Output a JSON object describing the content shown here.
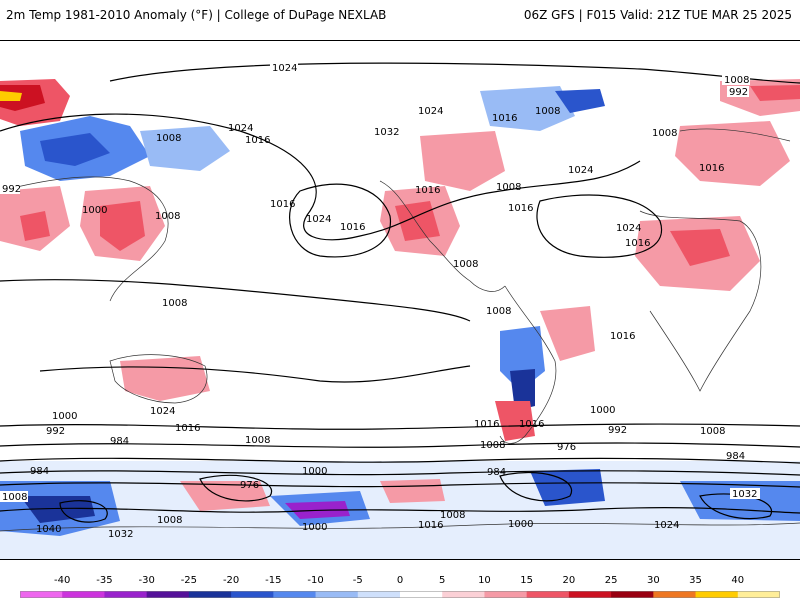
{
  "header": {
    "left_title": "2m Temp 1981-2010 Anomaly (°F) | College of DuPage NEXLAB",
    "right_title": "06Z GFS | F015 Valid: 21Z TUE MAR 25 2025"
  },
  "isobar_labels": [
    {
      "text": "1024"
    },
    {
      "text": "1008"
    },
    {
      "text": "992"
    },
    {
      "text": "1024"
    },
    {
      "text": "1016"
    },
    {
      "text": "1008"
    },
    {
      "text": "1032"
    },
    {
      "text": "1016"
    },
    {
      "text": "1008"
    },
    {
      "text": "1024"
    },
    {
      "text": "1016"
    },
    {
      "text": "1008"
    },
    {
      "text": "1016"
    },
    {
      "text": "1024"
    },
    {
      "text": "1016"
    },
    {
      "text": "1024"
    },
    {
      "text": "1016"
    },
    {
      "text": "1008"
    },
    {
      "text": "1008"
    },
    {
      "text": "1016"
    },
    {
      "text": "1008"
    },
    {
      "text": "1016"
    },
    {
      "text": "1024"
    },
    {
      "text": "1000"
    },
    {
      "text": "992"
    },
    {
      "text": "984"
    },
    {
      "text": "1000"
    },
    {
      "text": "992"
    },
    {
      "text": "976"
    },
    {
      "text": "984"
    },
    {
      "text": "1008"
    },
    {
      "text": "1040"
    },
    {
      "text": "1032"
    },
    {
      "text": "1024"
    },
    {
      "text": "1000"
    },
    {
      "text": "1016"
    },
    {
      "text": "1008"
    },
    {
      "text": "1000"
    },
    {
      "text": "1008"
    },
    {
      "text": "1032"
    },
    {
      "text": "1024"
    },
    {
      "text": "1016"
    },
    {
      "text": "1008"
    },
    {
      "text": "1016"
    },
    {
      "text": "1008"
    },
    {
      "text": "1000"
    },
    {
      "text": "1016"
    },
    {
      "text": "1008"
    },
    {
      "text": "984"
    },
    {
      "text": "976"
    },
    {
      "text": "1016"
    },
    {
      "text": "1008"
    },
    {
      "text": "1000"
    },
    {
      "text": "992"
    },
    {
      "text": "984"
    },
    {
      "text": "1008"
    }
  ],
  "colorbar": {
    "ticks": [
      "-40",
      "-35",
      "-30",
      "-25",
      "-20",
      "-15",
      "-10",
      "-5",
      "0",
      "5",
      "10",
      "15",
      "20",
      "25",
      "30",
      "35",
      "40"
    ],
    "colors": [
      "#ee66ee",
      "#cc33dd",
      "#9922cc",
      "#551199",
      "#1a3399",
      "#2a55cc",
      "#5588ee",
      "#99bbf5",
      "#cfe0fb",
      "#ffffff",
      "#fbd0d6",
      "#f59aa6",
      "#ee5566",
      "#cc1122",
      "#990011",
      "#ee7722",
      "#ffcc00",
      "#ffee99"
    ]
  },
  "layers": {
    "contours": "sea-level pressure isobars",
    "shading": "2m temperature anomaly"
  }
}
